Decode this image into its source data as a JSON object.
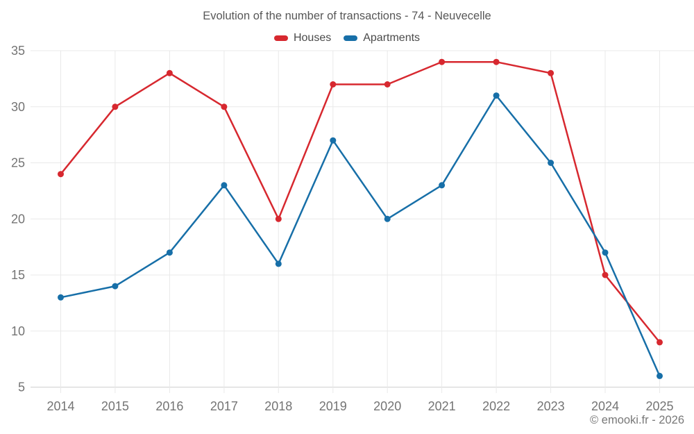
{
  "chart": {
    "title": "Evolution of the number of transactions - 74 - Neuvecelle",
    "attribution": "© emooki.fr - 2026",
    "colors": {
      "houses": "#d7282f",
      "apartments": "#176fa8",
      "gridline": "#e9e9e9",
      "axis_line": "#cfcfcf",
      "tick_label": "#747474",
      "title_text": "#575757"
    }
  },
  "chart_data": {
    "type": "line",
    "title": "Evolution of the number of transactions - 74 - Neuvecelle",
    "categories": [
      "2014",
      "2015",
      "2016",
      "2017",
      "2018",
      "2019",
      "2020",
      "2021",
      "2022",
      "2023",
      "2024",
      "2025"
    ],
    "series": [
      {
        "name": "Houses",
        "color": "#d7282f",
        "values": [
          24,
          30,
          33,
          30,
          20,
          32,
          32,
          34,
          34,
          33,
          15,
          9
        ]
      },
      {
        "name": "Apartments",
        "color": "#176fa8",
        "values": [
          13,
          14,
          17,
          23,
          16,
          27,
          20,
          23,
          31,
          25,
          17,
          6
        ]
      }
    ],
    "xlabel": "",
    "ylabel": "",
    "ylim": [
      5,
      35
    ],
    "yticks": [
      5,
      10,
      15,
      20,
      25,
      30,
      35
    ],
    "grid": true,
    "legend_position": "top",
    "marker": "circle"
  }
}
